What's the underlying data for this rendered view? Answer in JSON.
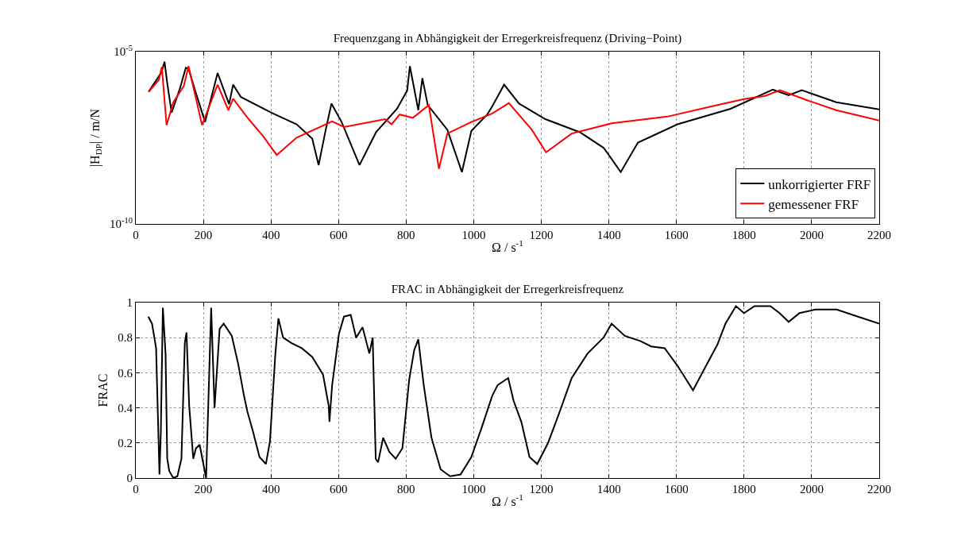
{
  "chart_data": [
    {
      "type": "line",
      "title": "Frequenzgang in Abhängigkeit der Erregerkreisfrequenz (Driving−Point)",
      "xlabel": "Ω / s$^{-1}$",
      "ylabel": "|H$_{DP}$| / m/N",
      "log": "y",
      "grid": "x",
      "legend": "bottom right",
      "xlim": [
        0,
        2200
      ],
      "xticks": [
        0,
        200,
        400,
        600,
        800,
        1000,
        1200,
        1400,
        1600,
        1800,
        2000,
        2200
      ],
      "ylim": [
        1e-10,
        1e-05
      ],
      "yticks": [
        {
          "value": 1e-10,
          "label": "10$^{-10}$"
        },
        {
          "value": 1e-05,
          "label": "10$^{-5}$"
        }
      ],
      "series": [
        {
          "name": "unkorrigierter FRF",
          "color": "#000000",
          "x": [
            38,
            76,
            85,
            93,
            106,
            131,
            148,
            156,
            178,
            205,
            242,
            276,
            288,
            311,
            401,
            476,
            522,
            541,
            562,
            579,
            609,
            662,
            711,
            773,
            803,
            811,
            836,
            848,
            864,
            922,
            965,
            993,
            1040,
            1055,
            1090,
            1134,
            1212,
            1314,
            1385,
            1435,
            1486,
            1603,
            1760,
            1885,
            1932,
            1971,
            2073,
            2200
          ],
          "values": [
            6.8e-07,
            2.5e-06,
            5.1e-06,
            1.2e-06,
            1.7e-07,
            8.8e-07,
            3.4e-06,
            3.2e-06,
            6.2e-07,
            9.1e-08,
            2.4e-06,
            3e-07,
            1.1e-06,
            4.8e-07,
            1.7e-07,
            7.8e-08,
            3e-08,
            5.1e-09,
            5.4e-08,
            3.1e-07,
            9.1e-08,
            5.1e-09,
            4.6e-08,
            2.2e-07,
            7.4e-07,
            3.8e-06,
            2e-07,
            1.7e-06,
            2.8e-07,
            5.4e-08,
            3.2e-09,
            5e-08,
            1.5e-07,
            2.6e-07,
            1.1e-06,
            3.1e-07,
            1.1e-07,
            4.6e-08,
            1.6e-08,
            3.2e-09,
            2.3e-08,
            7.8e-08,
            2.2e-07,
            7.9e-07,
            5.4e-07,
            7.6e-07,
            3.4e-07,
            2.1e-07
          ]
        },
        {
          "name": "gemessener FRF",
          "color": "#ff0000",
          "x": [
            38,
            68,
            77,
            91,
            111,
            142,
            156,
            196,
            242,
            274,
            288,
            334,
            377,
            417,
            476,
            581,
            616,
            738,
            757,
            781,
            820,
            867,
            897,
            922,
            993,
            1055,
            1104,
            1172,
            1214,
            1290,
            1408,
            1573,
            1706,
            1800,
            1863,
            1906,
            1996,
            2073,
            2200
          ],
          "values": [
            6.8e-07,
            1.5e-06,
            3.6e-06,
            7.4e-08,
            3.4e-07,
            1e-06,
            3.8e-06,
            7.4e-08,
            1.1e-06,
            2e-07,
            4.3e-07,
            1.1e-07,
            3.5e-08,
            1e-08,
            3.2e-08,
            9.5e-08,
            6.5e-08,
            1.1e-07,
            7.8e-08,
            1.5e-07,
            1.2e-07,
            2.8e-07,
            4e-09,
            4.2e-08,
            9.1e-08,
            1.6e-07,
            3.2e-07,
            5.4e-08,
            1.2e-08,
            4.2e-08,
            8.3e-08,
            1.3e-07,
            2.6e-07,
            4.2e-07,
            5.2e-07,
            7.6e-07,
            3.6e-07,
            2e-07,
            1e-07
          ]
        }
      ]
    },
    {
      "type": "line",
      "title": "FRAC in Abhängigkeit der Erregerkreisfrequenz",
      "xlabel": "Ω / s$^{-1}$",
      "ylabel": "FRAC",
      "grid": true,
      "xlim": [
        0,
        2200
      ],
      "xticks": [
        0,
        200,
        400,
        600,
        800,
        1000,
        1200,
        1400,
        1600,
        1800,
        2000,
        2200
      ],
      "ylim": [
        0,
        1
      ],
      "yticks": [
        0,
        0.2,
        0.4,
        0.6,
        0.8,
        1
      ],
      "series": [
        {
          "color": "#000000",
          "x": [
            37,
            48,
            60,
            70,
            74,
            80,
            88,
            93,
            99,
            111,
            123,
            135,
            145,
            150,
            158,
            170,
            178,
            189,
            197,
            208,
            223,
            233,
            248,
            260,
            284,
            303,
            319,
            330,
            346,
            366,
            385,
            397,
            413,
            422,
            436,
            460,
            491,
            522,
            554,
            571,
            573,
            581,
            601,
            616,
            636,
            652,
            671,
            691,
            701,
            710,
            717,
            732,
            750,
            769,
            789,
            809,
            824,
            836,
            852,
            875,
            902,
            930,
            961,
            993,
            1024,
            1055,
            1071,
            1102,
            1118,
            1141,
            1165,
            1188,
            1220,
            1251,
            1290,
            1337,
            1384,
            1408,
            1447,
            1494,
            1525,
            1565,
            1603,
            1649,
            1682,
            1721,
            1745,
            1776,
            1800,
            1831,
            1878,
            1905,
            1932,
            1964,
            2011,
            2074,
            2137,
            2200
          ],
          "values": [
            0.92,
            0.88,
            0.74,
            0.02,
            0.26,
            0.97,
            0.71,
            0.11,
            0.04,
            0.0,
            0.01,
            0.11,
            0.77,
            0.83,
            0.41,
            0.11,
            0.17,
            0.19,
            0.11,
            0.0,
            0.97,
            0.4,
            0.85,
            0.88,
            0.81,
            0.65,
            0.48,
            0.38,
            0.27,
            0.12,
            0.08,
            0.21,
            0.71,
            0.91,
            0.8,
            0.77,
            0.74,
            0.69,
            0.59,
            0.41,
            0.32,
            0.53,
            0.82,
            0.92,
            0.93,
            0.8,
            0.86,
            0.71,
            0.8,
            0.11,
            0.09,
            0.23,
            0.15,
            0.11,
            0.17,
            0.56,
            0.73,
            0.79,
            0.53,
            0.23,
            0.05,
            0.01,
            0.02,
            0.12,
            0.29,
            0.47,
            0.53,
            0.57,
            0.44,
            0.32,
            0.12,
            0.08,
            0.2,
            0.36,
            0.57,
            0.71,
            0.8,
            0.88,
            0.81,
            0.78,
            0.75,
            0.74,
            0.64,
            0.5,
            0.62,
            0.76,
            0.88,
            0.98,
            0.94,
            0.98,
            0.98,
            0.94,
            0.89,
            0.94,
            0.96,
            0.96,
            0.92,
            0.88
          ]
        }
      ]
    }
  ]
}
